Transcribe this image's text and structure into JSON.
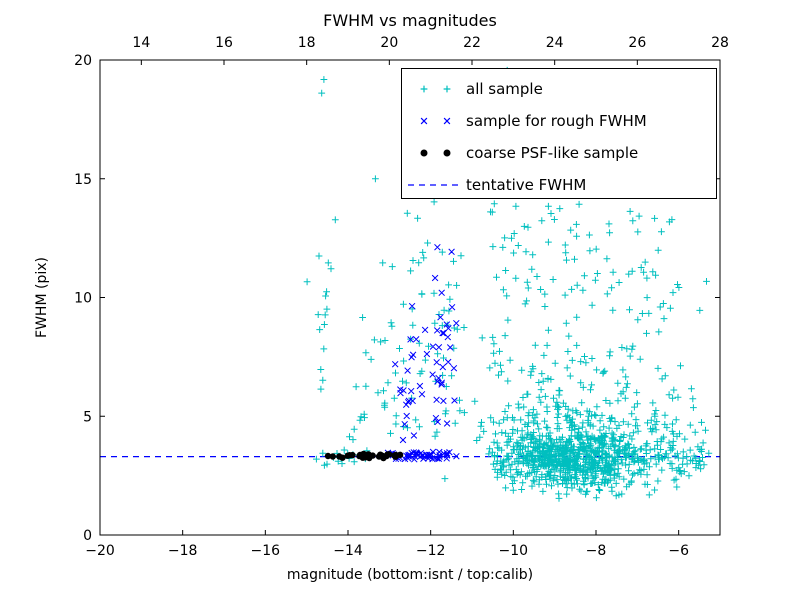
{
  "chart_data": {
    "type": "scatter",
    "title": "FWHM vs magnitudes",
    "xlabel": "magnitude (bottom:isnt / top:calib)",
    "ylabel": "FWHM (pix)",
    "xlim": [
      -20,
      -5
    ],
    "xlim_top": [
      13,
      28
    ],
    "ylim": [
      0,
      20
    ],
    "grid": false,
    "legend_position": "upper right",
    "tentative_fwhm": 3.3,
    "x_ticks_bottom": {
      "values": [
        -20,
        -18,
        -16,
        -14,
        -12,
        -10,
        -8,
        -6
      ],
      "labels": [
        "−20",
        "−18",
        "−16",
        "−14",
        "−12",
        "−10",
        "−8",
        "−6"
      ]
    },
    "x_ticks_top": {
      "values": [
        14,
        16,
        18,
        20,
        22,
        24,
        26,
        28
      ],
      "labels": [
        "14",
        "16",
        "18",
        "20",
        "22",
        "24",
        "26",
        "28"
      ]
    },
    "y_ticks": {
      "values": [
        0,
        5,
        10,
        15,
        20
      ],
      "labels": [
        "0",
        "5",
        "10",
        "15",
        "20"
      ]
    },
    "colors": {
      "all_sample": "#00bfbf",
      "rough_fwhm": "#0000ff",
      "coarse_psf": "#000000",
      "tentative_line": "#0000ff"
    },
    "legend": [
      {
        "label": "all sample",
        "marker": "plus",
        "color": "#00bfbf"
      },
      {
        "label": "sample for rough FWHM",
        "marker": "x",
        "color": "#0000ff"
      },
      {
        "label": "coarse PSF-like sample",
        "marker": "dot",
        "color": "#000000"
      },
      {
        "label": "tentative FWHM",
        "marker": "dashed-line",
        "color": "#0000ff"
      }
    ],
    "series": [
      {
        "id": "all-sample",
        "name": "all sample",
        "marker": "plus",
        "color": "#00bfbf",
        "seed": 7,
        "clusters": [
          {
            "type": "gauss",
            "n": 620,
            "cx": -8.6,
            "cy": 3.3,
            "sx": 0.85,
            "sy": 0.7,
            "ymin": 1.5,
            "ymax": 7.2
          },
          {
            "type": "gauss",
            "n": 260,
            "cx": -8.4,
            "cy": 4.3,
            "sx": 1.35,
            "sy": 1.7,
            "ymin": 1.6,
            "ymax": 10
          },
          {
            "type": "gauss",
            "n": 110,
            "cx": -7.6,
            "cy": 3.35,
            "sx": 1.6,
            "sy": 0.3,
            "xmin": -11.0,
            "xmax": -5.1
          },
          {
            "type": "uniform",
            "n": 120,
            "x0": -10.6,
            "x1": -6.0,
            "y0": 6.5,
            "y1": 15.0
          },
          {
            "type": "uniform",
            "n": 70,
            "x0": -15.1,
            "x1": -5.2,
            "y0": 3.5,
            "y1": 19.8
          },
          {
            "type": "gauss",
            "n": 14,
            "cx": -14.6,
            "cy": 10,
            "sx": 0.12,
            "sy": 4.5,
            "ymin": 4,
            "ymax": 19.5
          },
          {
            "type": "gauss",
            "n": 26,
            "cx": -12.25,
            "cy": 8,
            "sx": 0.3,
            "sy": 3.0,
            "ymin": 4,
            "ymax": 16.5
          },
          {
            "type": "gauss",
            "n": 20,
            "cx": -11.55,
            "cy": 8.5,
            "sx": 0.22,
            "sy": 3.2,
            "ymin": 4,
            "ymax": 16
          },
          {
            "type": "uniform",
            "n": 22,
            "x0": -13.9,
            "x1": -12.6,
            "y0": 4.0,
            "y1": 9.5
          },
          {
            "type": "gauss",
            "n": 45,
            "cx": -6.0,
            "cy": 3.7,
            "sx": 0.55,
            "sy": 1.0,
            "ymin": 2,
            "ymax": 6.5,
            "xmax": -5.05
          },
          {
            "type": "uniform",
            "n": 15,
            "x0": -14.9,
            "x1": -13.5,
            "y0": 2.9,
            "y1": 3.7
          }
        ]
      },
      {
        "id": "rough-fwhm-sample",
        "name": "sample for rough FWHM",
        "marker": "x",
        "color": "#0000ff",
        "seed": 11,
        "clusters": [
          {
            "type": "uniform",
            "n": 55,
            "x0": -13.05,
            "x1": -11.35,
            "y0": 3.18,
            "y1": 3.5
          },
          {
            "type": "gauss",
            "n": 20,
            "cx": -12.55,
            "cy": 6.2,
            "sx": 0.15,
            "sy": 1.7,
            "ymin": 3.7,
            "ymax": 9.8
          },
          {
            "type": "gauss",
            "n": 26,
            "cx": -11.68,
            "cy": 8.2,
            "sx": 0.16,
            "sy": 2.5,
            "ymin": 3.6,
            "ymax": 12.3
          },
          {
            "type": "uniform",
            "n": 8,
            "x0": -12.35,
            "x1": -11.45,
            "y0": 4.2,
            "y1": 8.0
          }
        ]
      },
      {
        "id": "coarse-psf-sample",
        "name": "coarse PSF-like sample",
        "marker": "dot",
        "color": "#000000",
        "seed": 3,
        "clusters": [
          {
            "type": "uniform",
            "n": 30,
            "x0": -14.5,
            "x1": -12.62,
            "y0": 3.24,
            "y1": 3.42
          }
        ]
      }
    ]
  }
}
